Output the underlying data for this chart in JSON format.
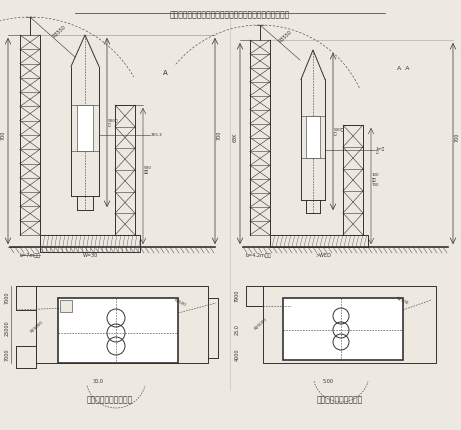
{
  "title": "付図－５　偏心構造の塔と対象構造の塔の必要高さの比較",
  "bg_color": "#ede8e0",
  "left_caption": "〈避雷針塔偏心なし〉",
  "right_caption": "〈避雷針塔偏心あり〉",
  "fig_width": 4.61,
  "fig_height": 4.3,
  "dark": "#333333",
  "mid": "#666666",
  "light": "#999999"
}
